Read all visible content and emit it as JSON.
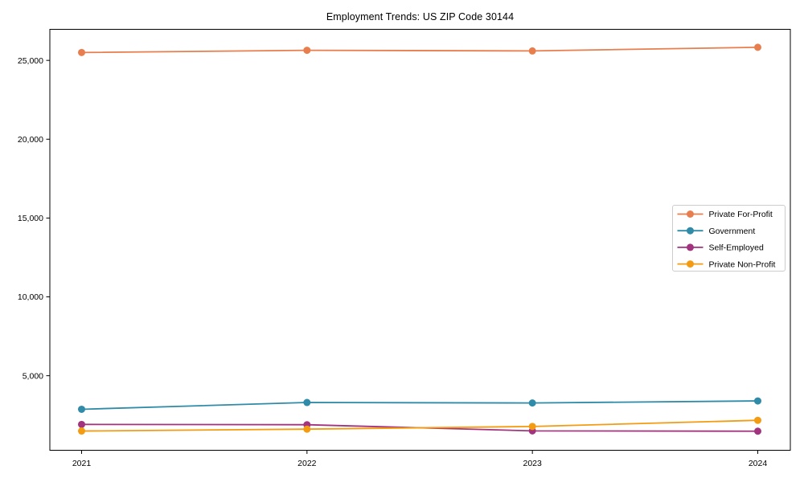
{
  "figure": {
    "title": "Employment Trends: US ZIP Code 30144"
  },
  "chart_data": {
    "type": "line",
    "title": "Employment Trends: US ZIP Code 30144",
    "xlabel": "",
    "ylabel": "",
    "categories": [
      "2021",
      "2022",
      "2023",
      "2024"
    ],
    "series": [
      {
        "name": "Private For-Profit",
        "color": "#e87d4d",
        "values": [
          25500,
          25640,
          25600,
          25830
        ]
      },
      {
        "name": "Government",
        "color": "#2f8ba8",
        "values": [
          2870,
          3300,
          3270,
          3400
        ]
      },
      {
        "name": "Self-Employed",
        "color": "#a2337e",
        "values": [
          1910,
          1890,
          1500,
          1480
        ]
      },
      {
        "name": "Private Non-Profit",
        "color": "#f39c12",
        "values": [
          1490,
          1610,
          1780,
          2170
        ]
      }
    ],
    "ylim": [
      270,
      26970
    ],
    "yticks": [
      5000,
      10000,
      15000,
      20000,
      25000
    ],
    "ytick_labels": [
      "5,000",
      "10,000",
      "15,000",
      "20,000",
      "25,000"
    ],
    "legend": {
      "position": "center-right",
      "entries": [
        "Private For-Profit",
        "Government",
        "Self-Employed",
        "Private Non-Profit"
      ]
    },
    "grid": false,
    "marker": "circle",
    "style": {
      "axis_color": "#000000",
      "text_color": "#000000",
      "background": "#ffffff",
      "legend_border": "#cccccc",
      "line_width": 1.8,
      "marker_radius": 4.5
    }
  }
}
